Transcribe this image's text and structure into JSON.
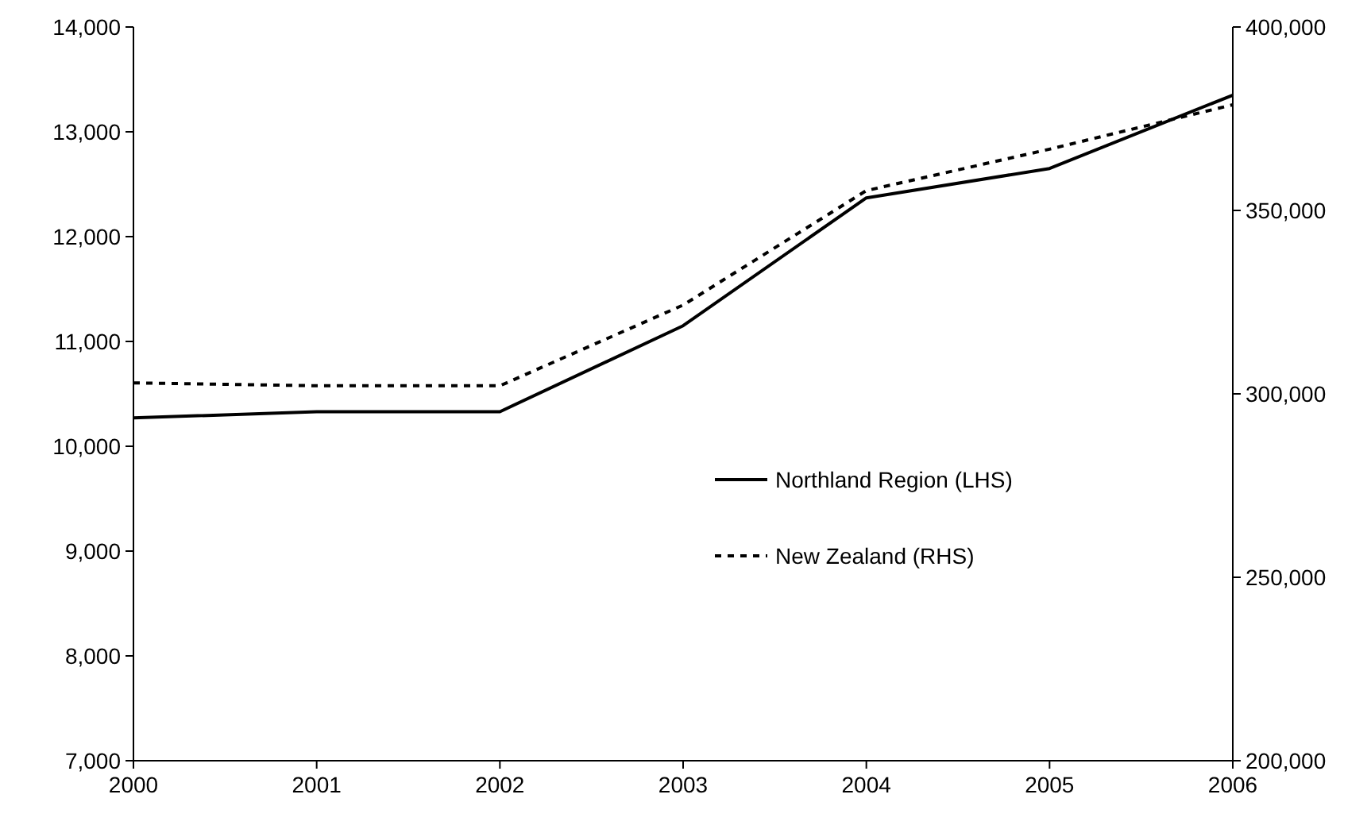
{
  "chart_data": {
    "type": "line",
    "x": [
      2000,
      2001,
      2002,
      2003,
      2004,
      2005,
      2006
    ],
    "xlim": [
      2000,
      2006
    ],
    "xticks": [
      2000,
      2001,
      2002,
      2003,
      2004,
      2005,
      2006
    ],
    "ylim": [
      7000,
      14000
    ],
    "yticks": [
      {
        "value": 7000,
        "label": "7,000"
      },
      {
        "value": 8000,
        "label": "8,000"
      },
      {
        "value": 9000,
        "label": "9,000"
      },
      {
        "value": 10000,
        "label": "10,000"
      },
      {
        "value": 11000,
        "label": "11,000"
      },
      {
        "value": 12000,
        "label": "12,000"
      },
      {
        "value": 13000,
        "label": "13,000"
      },
      {
        "value": 14000,
        "label": "14,000"
      }
    ],
    "y2lim": [
      200000,
      400000
    ],
    "y2ticks": [
      {
        "value": 200000,
        "label": "200,000"
      },
      {
        "value": 250000,
        "label": "250,000"
      },
      {
        "value": 300000,
        "label": "300,000"
      },
      {
        "value": 350000,
        "label": "350,000"
      },
      {
        "value": 400000,
        "label": "400,000"
      }
    ],
    "series": [
      {
        "name": "Northland Region (LHS)",
        "color": "#000000",
        "line_style": "solid",
        "values": [
          10270,
          10330,
          10330,
          11150,
          12370,
          12650,
          13350
        ]
      },
      {
        "name": "New Zealand (RHS)",
        "color": "#000000",
        "line_style": "dashed",
        "axis": "y2",
        "values": [
          303000,
          302200,
          302200,
          324200,
          355400,
          366700,
          378800
        ]
      }
    ],
    "grid": false,
    "legend": "right"
  }
}
